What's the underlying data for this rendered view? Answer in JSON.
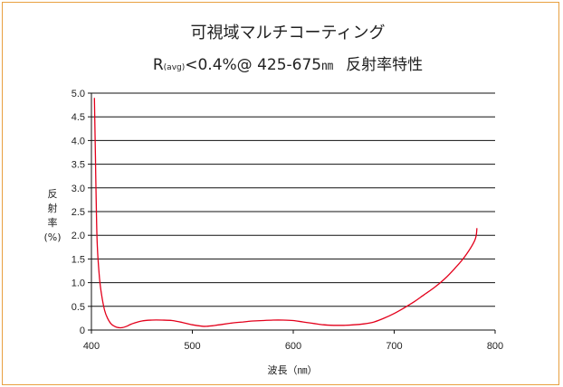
{
  "chart_data": {
    "type": "line",
    "title": "可視域マルチコーティング",
    "subtitle": {
      "r": "R",
      "avg": "(avg)",
      "spec": "<0.4%@ 425-675",
      "unit": "㎚",
      "suffix": "反射率特性"
    },
    "xlabel": "波長（㎚）",
    "ylabel": [
      "反",
      "射",
      "率",
      "(%)"
    ],
    "xlim": [
      400,
      800
    ],
    "ylim": [
      0,
      5.0
    ],
    "x_ticks": [
      "400",
      "500",
      "600",
      "700",
      "800"
    ],
    "y_ticks": [
      "0",
      "0.5",
      "1.0",
      "1.5",
      "2.0",
      "2.5",
      "3.0",
      "3.5",
      "4.0",
      "4.5",
      "5.0"
    ],
    "grid": true,
    "series": [
      {
        "color": "#e3001b",
        "x": [
          403,
          404,
          405,
          406,
          408,
          410,
          413,
          416,
          420,
          425,
          430,
          435,
          440,
          450,
          460,
          470,
          480,
          490,
          500,
          510,
          515,
          520,
          530,
          540,
          550,
          560,
          570,
          580,
          590,
          600,
          610,
          620,
          630,
          640,
          650,
          660,
          670,
          680,
          690,
          700,
          710,
          720,
          730,
          740,
          750,
          760,
          770,
          780,
          782
        ],
        "y": [
          4.9,
          3.6,
          2.4,
          1.7,
          1.1,
          0.75,
          0.42,
          0.25,
          0.12,
          0.06,
          0.05,
          0.08,
          0.13,
          0.19,
          0.21,
          0.21,
          0.2,
          0.16,
          0.11,
          0.08,
          0.08,
          0.09,
          0.12,
          0.15,
          0.17,
          0.19,
          0.2,
          0.21,
          0.21,
          0.2,
          0.17,
          0.14,
          0.11,
          0.1,
          0.1,
          0.11,
          0.13,
          0.17,
          0.25,
          0.35,
          0.47,
          0.6,
          0.75,
          0.9,
          1.08,
          1.3,
          1.55,
          1.9,
          2.15
        ]
      }
    ]
  }
}
